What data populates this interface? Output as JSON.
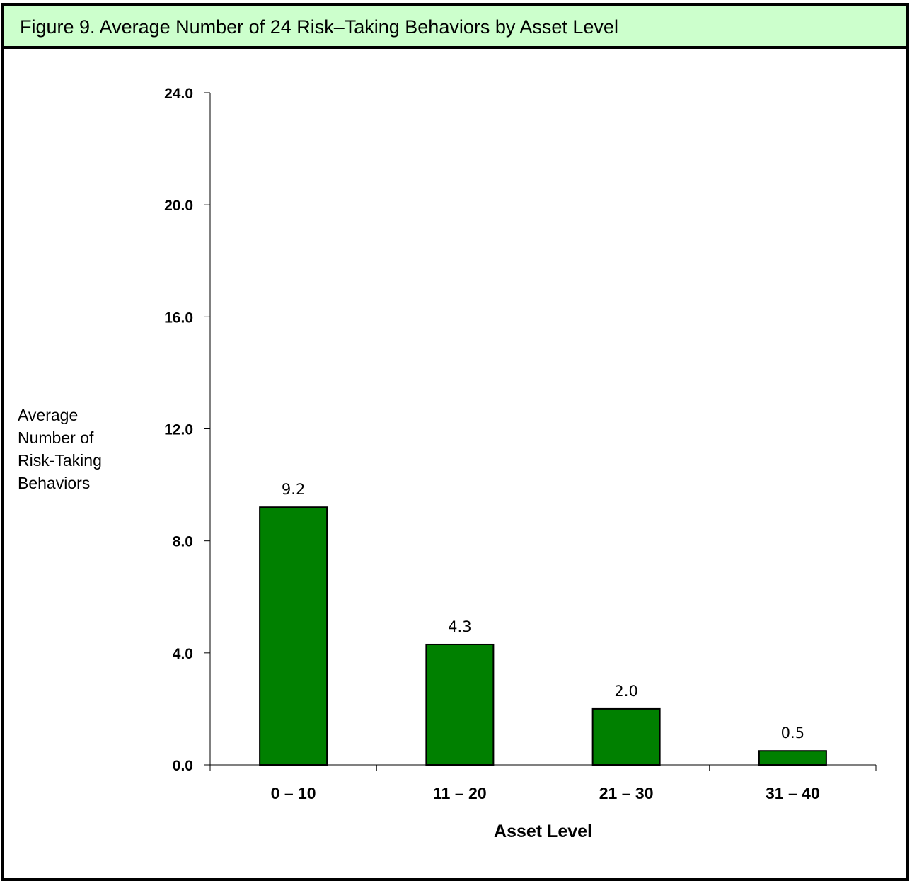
{
  "header": {
    "title": "Figure 9.  Average Number of 24 Risk–Taking Behaviors by Asset Level"
  },
  "colors": {
    "header_bg": "#ccffcc",
    "bar_fill": "#008000",
    "border": "#000000"
  },
  "chart_data": {
    "type": "bar",
    "title": "Figure 9.  Average Number of 24 Risk–Taking Behaviors by Asset Level",
    "categories": [
      "0 – 10",
      "11 – 20",
      "21 – 30",
      "31 – 40"
    ],
    "values": [
      9.2,
      4.3,
      2.0,
      0.5
    ],
    "data_labels": [
      "9.2",
      "4.3",
      "2.0",
      "0.5"
    ],
    "xlabel": "Asset Level",
    "ylabel_lines": [
      "Average",
      "Number of",
      "Risk-Taking",
      "Behaviors"
    ],
    "ylim": [
      0,
      24
    ],
    "yticks": [
      0,
      4,
      8,
      12,
      16,
      20,
      24
    ],
    "ytick_labels": [
      "0.0",
      "4.0",
      "8.0",
      "12.0",
      "16.0",
      "20.0",
      "24.0"
    ],
    "grid": false,
    "legend": "none"
  }
}
